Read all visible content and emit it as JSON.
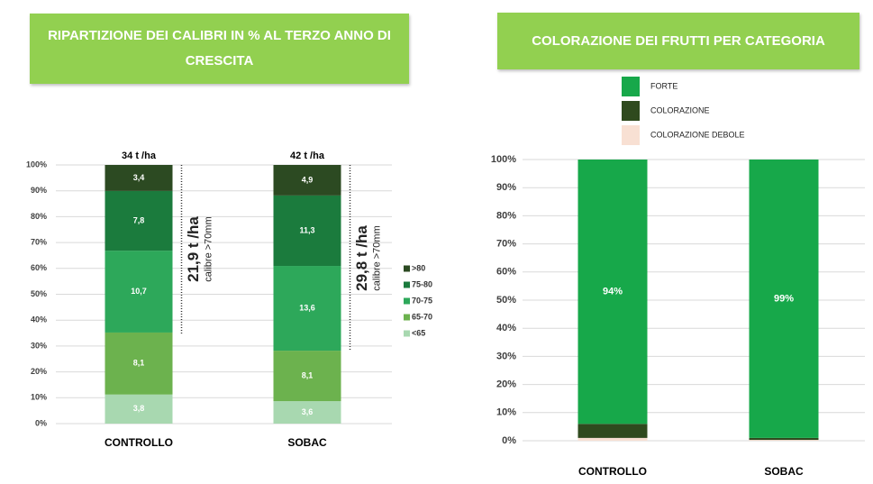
{
  "chart_data": [
    {
      "type": "bar",
      "stacking": "percent",
      "title": "RIPARTIZIONE DEI CALIBRI IN % AL TERZO ANNO DI CRESCITA",
      "categories": [
        "CONTROLLO",
        "SOBAC"
      ],
      "category_annotations": [
        "34 t /ha",
        "42 t /ha"
      ],
      "brackets": [
        {
          "text": "21,9 t /ha",
          "subtext": "calibre >70mm"
        },
        {
          "text": "29,8 t /ha",
          "subtext": "calibre >70mm"
        }
      ],
      "series": [
        {
          "name": "<65",
          "color": "#a8d8b0",
          "values": [
            3.8,
            3.6
          ],
          "value_labels": [
            "3,8",
            "3,6"
          ]
        },
        {
          "name": "65-70",
          "color": "#6cb24e",
          "values": [
            8.1,
            8.1
          ],
          "value_labels": [
            "8,1",
            "8,1"
          ]
        },
        {
          "name": "70-75",
          "color": "#2da85a",
          "values": [
            10.7,
            13.6
          ],
          "value_labels": [
            "10,7",
            "13,6"
          ]
        },
        {
          "name": "75-80",
          "color": "#1b7b3d",
          "values": [
            7.8,
            11.3
          ],
          "value_labels": [
            "7,8",
            "11,3"
          ]
        },
        {
          "name": ">80",
          "color": "#2c4a22",
          "values": [
            3.4,
            4.9
          ],
          "value_labels": [
            "3,4",
            "4,9"
          ]
        }
      ],
      "ylim": [
        0,
        100
      ],
      "yticks": [
        {
          "value": 0,
          "label": "0%"
        },
        {
          "value": 10,
          "label": "10%"
        },
        {
          "value": 20,
          "label": "20%"
        },
        {
          "value": 30,
          "label": "30%"
        },
        {
          "value": 40,
          "label": "40%"
        },
        {
          "value": 50,
          "label": "50%"
        },
        {
          "value": 60,
          "label": "60%"
        },
        {
          "value": 70,
          "label": "70%"
        },
        {
          "value": 80,
          "label": "80%"
        },
        {
          "value": 90,
          "label": "90%"
        },
        {
          "value": 100,
          "label": "100%"
        }
      ],
      "grid": true,
      "legend": "right"
    },
    {
      "type": "bar",
      "stacking": "normal",
      "title": "COLORAZIONE DEI FRUTTI PER CATEGORIA",
      "categories": [
        "CONTROLLO",
        "SOBAC"
      ],
      "series": [
        {
          "name": "COLORAZIONE DEBOLE",
          "color": "#f8e0d3",
          "values": [
            1,
            0.3
          ]
        },
        {
          "name": "COLORAZIONE",
          "color": "#2f4a1e",
          "values": [
            5,
            0.7
          ]
        },
        {
          "name": "FORTE",
          "color": "#17a84a",
          "values": [
            94,
            99
          ],
          "value_labels": [
            "94%",
            "99%"
          ]
        }
      ],
      "ylim": [
        0,
        100
      ],
      "yticks": [
        {
          "value": 0,
          "label": "0%"
        },
        {
          "value": 10,
          "label": "10%"
        },
        {
          "value": 20,
          "label": "20%"
        },
        {
          "value": 30,
          "label": "30%"
        },
        {
          "value": 40,
          "label": "40%"
        },
        {
          "value": 50,
          "label": "50%"
        },
        {
          "value": 60,
          "label": "60%"
        },
        {
          "value": 70,
          "label": "70%"
        },
        {
          "value": 80,
          "label": "80%"
        },
        {
          "value": 90,
          "label": "90%"
        },
        {
          "value": 100,
          "label": "100%"
        }
      ],
      "grid": true,
      "legend": "top"
    }
  ]
}
